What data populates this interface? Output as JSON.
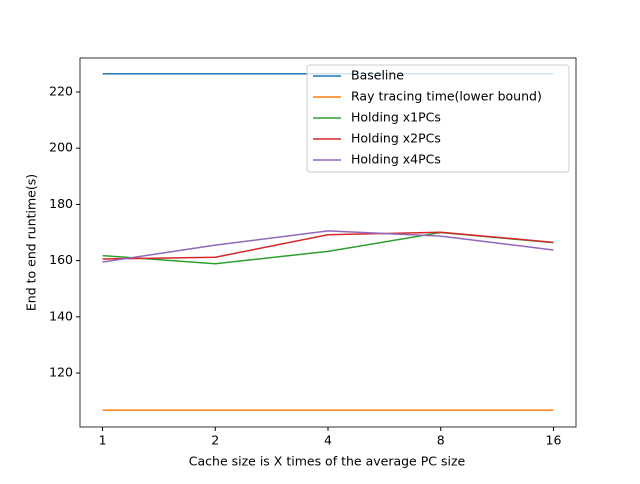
{
  "chart_data": {
    "type": "line",
    "xlabel": "Cache size is X times of the average PC size",
    "ylabel": "End to end runtime(s)",
    "categories": [
      "1",
      "2",
      "4",
      "8",
      "16"
    ],
    "series": [
      {
        "name": "Baseline",
        "color": "#1f77b4",
        "values": [
          226.5,
          226.5,
          226.5,
          226.5,
          226.5
        ]
      },
      {
        "name": "Ray tracing time(lower bound)",
        "color": "#ff7f0e",
        "values": [
          106.8,
          106.8,
          106.8,
          106.8,
          106.8
        ]
      },
      {
        "name": "Holding x1PCs",
        "color": "#2ca02c",
        "values": [
          161.8,
          158.9,
          163.3,
          170.0,
          166.4
        ]
      },
      {
        "name": "Holding x2PCs",
        "color": "#d62728",
        "values": [
          160.6,
          161.2,
          169.2,
          170.1,
          166.5
        ]
      },
      {
        "name": "Holding x4PCs",
        "color": "#9467bd",
        "values": [
          159.5,
          165.5,
          170.6,
          168.7,
          163.8
        ]
      }
    ],
    "ylim": [
      100.8,
      232.1
    ],
    "yticks": [
      120,
      140,
      160,
      180,
      200,
      220
    ],
    "legend": "upper right"
  }
}
